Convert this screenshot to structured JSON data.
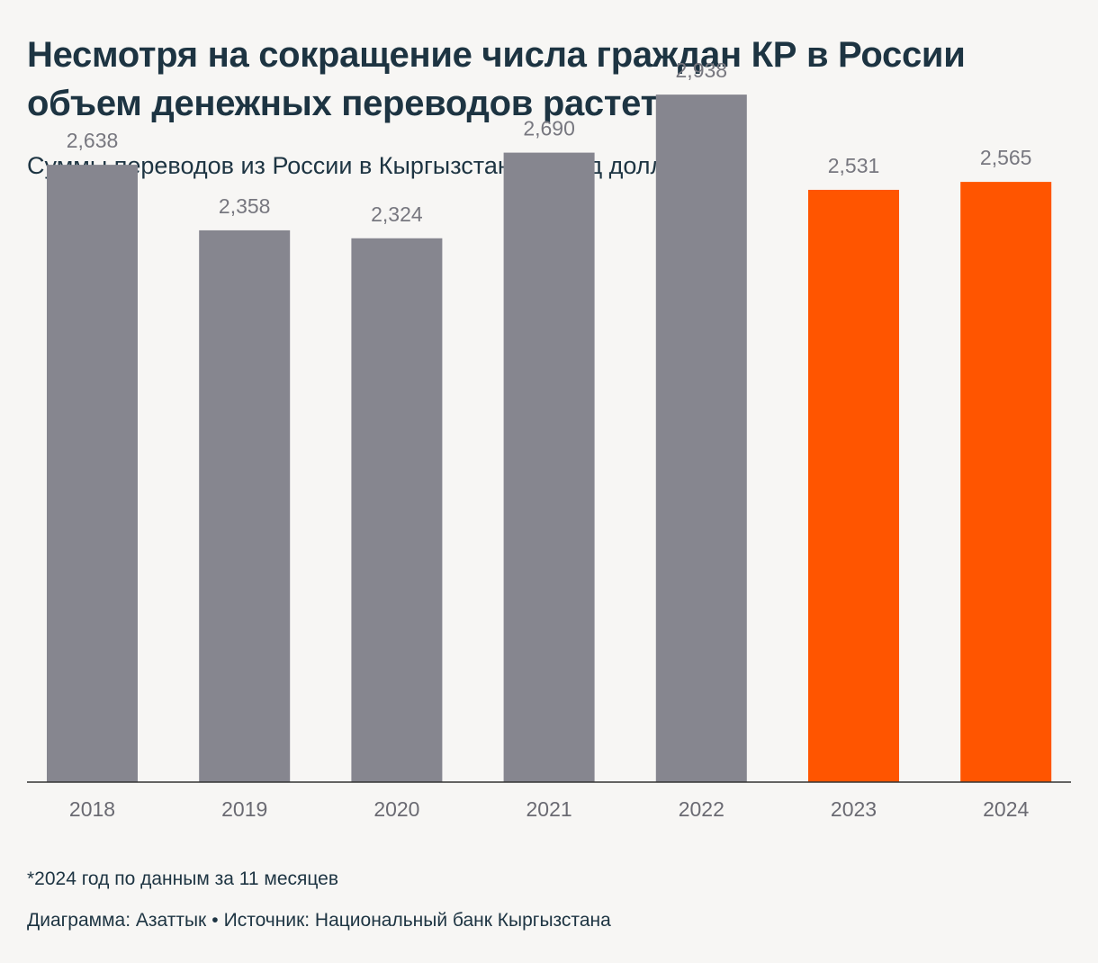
{
  "header": {
    "title": "Несмотря на сокращение числа граждан КР в России объем денежных переводов растет",
    "subtitle": "Суммы переводов из России в Кыргызстан, в млрд долларов"
  },
  "footer": {
    "footnote": "*2024 год по данным за 11 месяцев",
    "credit": "Диаграмма: Азаттык",
    "separator": "•",
    "source": "Источник: Национальный банк Кыргызстана"
  },
  "colors": {
    "default_bar": "#86868f",
    "highlight_bar": "#ff5500",
    "value_label": "#77777f",
    "axis_label": "#6a6a72",
    "axis_line": "#333333"
  },
  "chart_data": {
    "type": "bar",
    "title": "Несмотря на сокращение числа граждан КР в России объем денежных переводов растет",
    "subtitle": "Суммы переводов из России в Кыргызстан, в млрд долларов",
    "xlabel": "",
    "ylabel": "",
    "categories": [
      "2018",
      "2019",
      "2020",
      "2021",
      "2022",
      "2023",
      "2024"
    ],
    "values": [
      2.638,
      2.358,
      2.324,
      2.69,
      2.938,
      2.531,
      2.565
    ],
    "value_labels": [
      "2,638",
      "2,358",
      "2,324",
      "2,690",
      "2,938",
      "2,531",
      "2,565"
    ],
    "highlighted": [
      false,
      false,
      false,
      false,
      false,
      true,
      true
    ],
    "ylim": [
      0,
      3
    ],
    "grid": false,
    "legend": "none"
  }
}
